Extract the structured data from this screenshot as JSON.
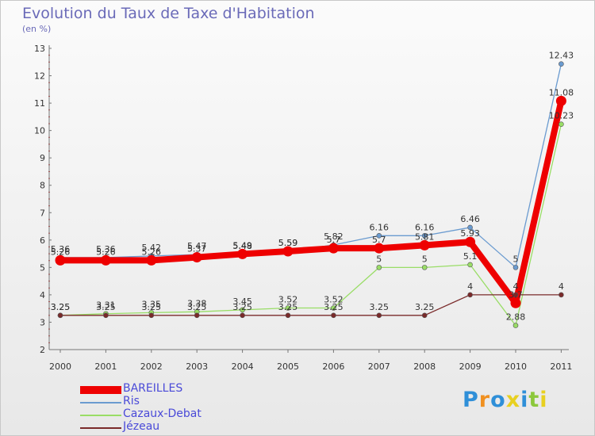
{
  "chart_data": {
    "type": "line",
    "title": "Evolution du Taux de Taxe d'Habitation",
    "ylabel": "(en %)",
    "xlabel": "",
    "ylim": [
      2,
      13
    ],
    "yticks": [
      "2",
      "3",
      "4",
      "5",
      "6",
      "7",
      "8",
      "9",
      "10",
      "11",
      "12",
      "13"
    ],
    "categories": [
      "2000",
      "2001",
      "2002",
      "2003",
      "2004",
      "2005",
      "2006",
      "2007",
      "2008",
      "2009",
      "2010",
      "2011"
    ],
    "series": [
      {
        "name": "BAREILLES",
        "color": "#ee0000",
        "values": [
          5.26,
          5.26,
          5.26,
          5.37,
          5.49,
          5.59,
          5.7,
          5.7,
          5.81,
          5.93,
          3.7,
          11.08
        ],
        "labels": [
          "5.26",
          "5.26",
          "5.26",
          "5.37",
          "5.49",
          "5.59",
          "5.7",
          "5.7",
          "5.81",
          "5.93",
          "3.7",
          "11.08"
        ]
      },
      {
        "name": "Ris",
        "color": "#6a9bd0",
        "values": [
          5.36,
          5.36,
          5.42,
          5.47,
          5.48,
          5.59,
          5.82,
          6.16,
          6.16,
          6.46,
          5.0,
          12.43
        ],
        "labels": [
          "5.36",
          "5.36",
          "5.42",
          "5.47",
          "5.48",
          "5.59",
          "5.82",
          "6.16",
          "6.16",
          "6.46",
          "5",
          "12.43"
        ]
      },
      {
        "name": "Cazaux-Debat",
        "color": "#99dd66",
        "values": [
          3.25,
          3.31,
          3.35,
          3.38,
          3.45,
          3.52,
          3.52,
          5.0,
          5.0,
          5.1,
          2.88,
          10.23
        ],
        "labels": [
          "3.25",
          "3.31",
          "3.35",
          "3.38",
          "3.45",
          "3.52",
          "3.52",
          "5",
          "5",
          "5.1",
          "2.88",
          "10.23"
        ]
      },
      {
        "name": "Jézeau",
        "color": "#7a2a2a",
        "values": [
          3.25,
          3.25,
          3.25,
          3.25,
          3.25,
          3.25,
          3.25,
          3.25,
          3.25,
          4.0,
          4.0,
          4.0
        ],
        "labels": [
          "3.25",
          "3.25",
          "3.25",
          "3.25",
          "3.25",
          "3.25",
          "3.25",
          "3.25",
          "3.25",
          "4",
          "4",
          "4"
        ]
      }
    ]
  },
  "branding": {
    "logo_letters": [
      "P",
      "r",
      "o",
      "x",
      "i",
      "t",
      "i"
    ],
    "logo_colors": [
      "#2f8fd8",
      "#f09020",
      "#2f8fd8",
      "#e8d020",
      "#2f8fd8",
      "#8cc83c",
      "#e8d020"
    ]
  }
}
